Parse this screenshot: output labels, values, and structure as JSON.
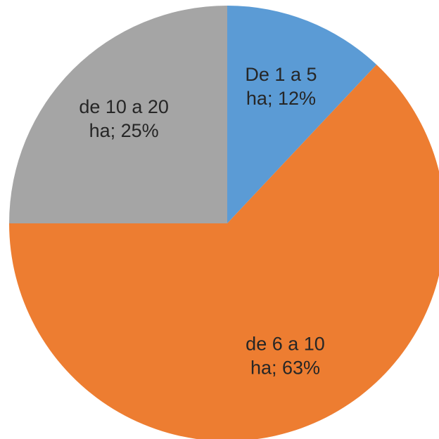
{
  "chart_data": {
    "type": "pie",
    "values": [
      12,
      63,
      25
    ],
    "value_labels": [
      "De 1 a 5 ha; 12%",
      "de 6 a 10 ha; 63%",
      "de 10 a 20 ha; 25%"
    ],
    "colors": [
      "#5b9bd5",
      "#ed7d31",
      "#a5a5a5"
    ]
  }
}
